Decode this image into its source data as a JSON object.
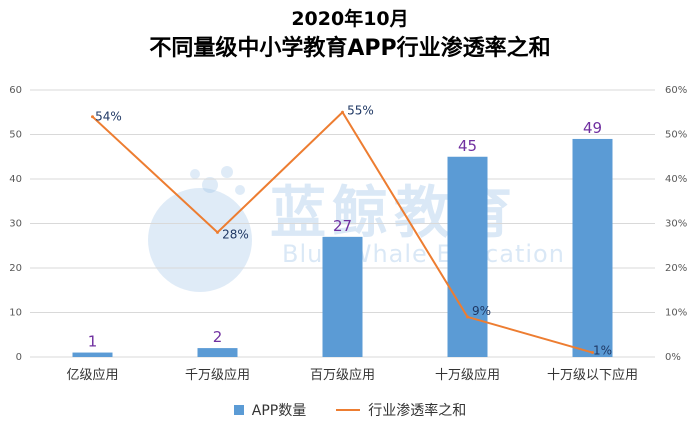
{
  "watermark": {
    "cn": "蓝鲸教育",
    "en": "Blue Whale Education"
  },
  "colors": {
    "bar": "#5b9bd5",
    "line": "#ed7d31",
    "bar_label": "#7030a0",
    "line_label": "#1f3864"
  },
  "chart_data": {
    "type": "bar",
    "title": "2020年10月",
    "subtitle": "不同量级中小学教育APP行业渗透率之和",
    "categories": [
      "亿级应用",
      "千万级应用",
      "百万级应用",
      "十万级应用",
      "十万级以下应用"
    ],
    "series": [
      {
        "name": "APP数量",
        "type": "bar",
        "axis": "left",
        "values": [
          1,
          2,
          27,
          45,
          49
        ],
        "labels": [
          "1",
          "2",
          "27",
          "45",
          "49"
        ]
      },
      {
        "name": "行业渗透率之和",
        "type": "line",
        "axis": "right",
        "values": [
          54,
          28,
          55,
          9,
          1
        ],
        "labels": [
          "54%",
          "28%",
          "55%",
          "9%",
          "1%"
        ]
      }
    ],
    "y_left": {
      "min": 0,
      "max": 60,
      "ticks": [
        "0",
        "10",
        "20",
        "30",
        "40",
        "50",
        "60"
      ]
    },
    "y_right": {
      "min": 0,
      "max": 60,
      "ticks": [
        "0%",
        "10%",
        "20%",
        "30%",
        "40%",
        "50%",
        "60%"
      ]
    },
    "grid": true,
    "legend_position": "bottom"
  }
}
